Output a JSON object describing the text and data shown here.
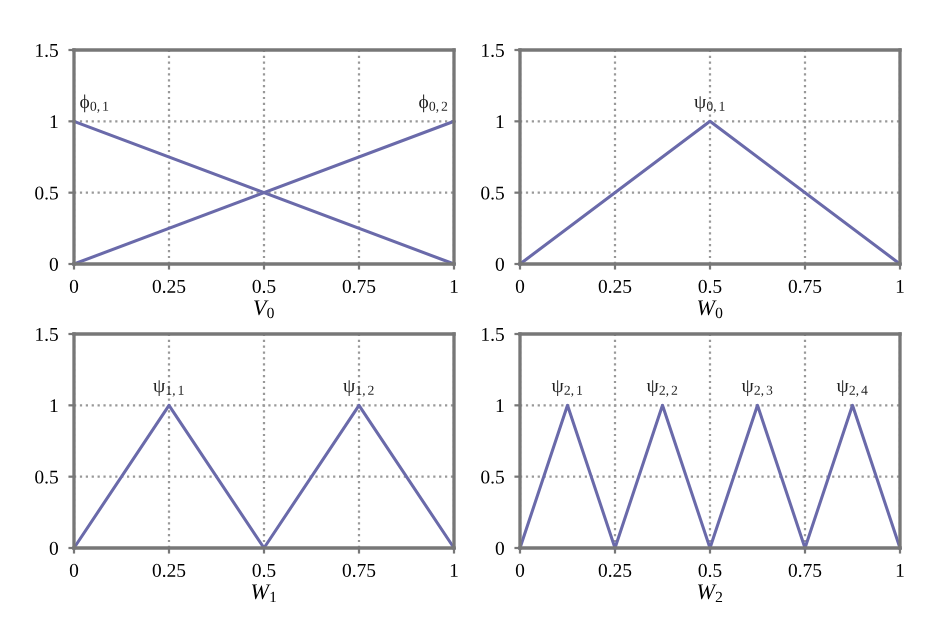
{
  "chart_data": [
    {
      "type": "line",
      "xlabel": "V$_{0}$",
      "xlim": [
        0,
        1
      ],
      "ylim": [
        0,
        1.5
      ],
      "xticks": [
        0,
        0.25,
        0.5,
        0.75,
        1
      ],
      "yticks": [
        0,
        0.5,
        1,
        1.5
      ],
      "grid": true,
      "legend": false,
      "line_style": "solid",
      "marker": "none",
      "series": [
        {
          "name": "ϕ$_{0,1}$",
          "color": "#6a6aaa",
          "x": [
            0,
            1
          ],
          "values": [
            1,
            0
          ]
        },
        {
          "name": "ϕ$_{0,2}$",
          "color": "#6a6aaa",
          "x": [
            0,
            1
          ],
          "values": [
            0,
            1
          ]
        }
      ]
    },
    {
      "type": "line",
      "xlabel": "W$_{0}$",
      "xlim": [
        0,
        1
      ],
      "ylim": [
        0,
        1.5
      ],
      "xticks": [
        0,
        0.25,
        0.5,
        0.75,
        1
      ],
      "yticks": [
        0,
        0.5,
        1,
        1.5
      ],
      "grid": true,
      "legend": false,
      "line_style": "solid",
      "marker": "none",
      "series": [
        {
          "name": "ψ$_{0,1}$",
          "color": "#6a6aaa",
          "x": [
            0,
            0.5,
            1
          ],
          "values": [
            0,
            1,
            0
          ]
        }
      ]
    },
    {
      "type": "line",
      "xlabel": "W$_{1}$",
      "xlim": [
        0,
        1
      ],
      "ylim": [
        0,
        1.5
      ],
      "xticks": [
        0,
        0.25,
        0.5,
        0.75,
        1
      ],
      "yticks": [
        0,
        0.5,
        1,
        1.5
      ],
      "grid": true,
      "legend": false,
      "line_style": "solid",
      "marker": "none",
      "series": [
        {
          "name": "ψ$_{1,1}$",
          "color": "#6a6aaa",
          "x": [
            0,
            0.25,
            0.5
          ],
          "values": [
            0,
            1,
            0
          ]
        },
        {
          "name": "ψ$_{1,2}$",
          "color": "#6a6aaa",
          "x": [
            0.5,
            0.75,
            1
          ],
          "values": [
            0,
            1,
            0
          ]
        }
      ]
    },
    {
      "type": "line",
      "xlabel": "W$_{2}$",
      "xlim": [
        0,
        1
      ],
      "ylim": [
        0,
        1.5
      ],
      "xticks": [
        0,
        0.25,
        0.5,
        0.75,
        1
      ],
      "yticks": [
        0,
        0.5,
        1,
        1.5
      ],
      "grid": true,
      "legend": false,
      "line_style": "solid",
      "marker": "none",
      "series": [
        {
          "name": "ψ$_{2,1}$",
          "color": "#6a6aaa",
          "x": [
            0,
            0.125,
            0.25
          ],
          "values": [
            0,
            1,
            0
          ]
        },
        {
          "name": "ψ$_{2,2}$",
          "color": "#6a6aaa",
          "x": [
            0.25,
            0.375,
            0.5
          ],
          "values": [
            0,
            1,
            0
          ]
        },
        {
          "name": "ψ$_{2,3}$",
          "color": "#6a6aaa",
          "x": [
            0.5,
            0.625,
            0.75
          ],
          "values": [
            0,
            1,
            0
          ]
        },
        {
          "name": "ψ$_{2,4}$",
          "color": "#6a6aaa",
          "x": [
            0.75,
            0.875,
            1
          ],
          "values": [
            0,
            1,
            0
          ]
        }
      ]
    }
  ]
}
